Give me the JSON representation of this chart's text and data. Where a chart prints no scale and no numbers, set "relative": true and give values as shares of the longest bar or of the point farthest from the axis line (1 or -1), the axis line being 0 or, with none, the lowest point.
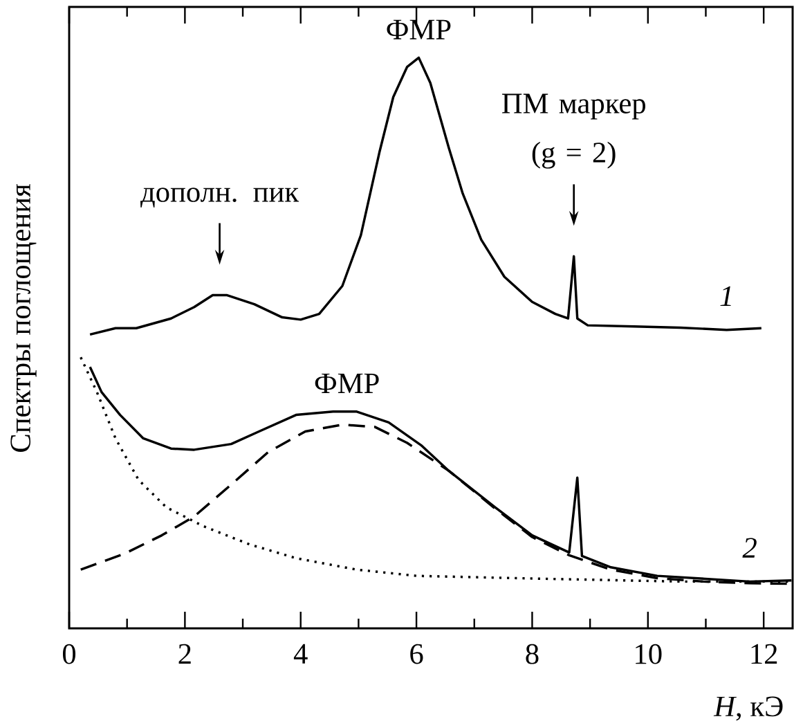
{
  "chart_data": {
    "type": "line",
    "relative": true,
    "xlabel": "*H*, кЭ",
    "ylabel": "Спектры поглощения",
    "xlim": [
      0,
      12.5
    ],
    "xticks": [
      0,
      2,
      4,
      6,
      8,
      10,
      12
    ],
    "grid": false,
    "legend": false,
    "marker": "none",
    "series": [
      {
        "name": "1",
        "color": "#000000",
        "line_style": "solid",
        "x": [
          0.36,
          0.8,
          1.16,
          1.76,
          2.16,
          2.48,
          2.72,
          3.2,
          3.68,
          4.0,
          4.32,
          4.72,
          5.04,
          5.36,
          5.6,
          5.84,
          6.04,
          6.24,
          6.56,
          6.8,
          7.12,
          7.52,
          8.0,
          8.4,
          8.62,
          8.72,
          8.78,
          8.96,
          9.76,
          10.56,
          11.36,
          11.96
        ],
        "values": [
          0.515,
          0.526,
          0.526,
          0.543,
          0.563,
          0.584,
          0.584,
          0.568,
          0.545,
          0.541,
          0.551,
          0.6,
          0.689,
          0.834,
          0.931,
          0.984,
          1.0,
          0.956,
          0.842,
          0.762,
          0.681,
          0.616,
          0.572,
          0.551,
          0.543,
          0.652,
          0.543,
          0.531,
          0.529,
          0.527,
          0.523,
          0.526
        ]
      },
      {
        "name": "2",
        "color": "#000000",
        "line_style": "solid",
        "x": [
          0.36,
          0.56,
          0.88,
          1.28,
          1.76,
          2.16,
          2.8,
          3.28,
          3.92,
          4.56,
          4.96,
          5.52,
          6.08,
          6.56,
          7.36,
          8.0,
          8.64,
          8.78,
          8.86,
          9.36,
          10.16,
          10.96,
          11.76,
          12.48
        ],
        "values": [
          0.458,
          0.414,
          0.374,
          0.333,
          0.315,
          0.313,
          0.323,
          0.345,
          0.374,
          0.38,
          0.38,
          0.361,
          0.321,
          0.276,
          0.212,
          0.163,
          0.133,
          0.264,
          0.127,
          0.107,
          0.092,
          0.087,
          0.082,
          0.084
        ]
      },
      {
        "color": "#000000",
        "line_style": "dashed",
        "x": [
          0.2,
          0.96,
          1.6,
          2.16,
          2.8,
          3.44,
          4.08,
          4.72,
          5.28,
          5.84,
          6.56,
          7.36,
          8.0,
          8.64,
          9.36,
          10.16,
          10.96,
          11.76,
          12.48
        ],
        "values": [
          0.103,
          0.131,
          0.163,
          0.196,
          0.252,
          0.309,
          0.345,
          0.357,
          0.353,
          0.325,
          0.276,
          0.21,
          0.16,
          0.128,
          0.103,
          0.088,
          0.082,
          0.079,
          0.078
        ]
      },
      {
        "color": "#000000",
        "line_style": "dotted",
        "x": [
          0.2,
          0.48,
          0.8,
          1.2,
          1.68,
          2.32,
          3.12,
          3.92,
          4.96,
          6.0,
          8.16,
          10.56,
          12.48
        ],
        "values": [
          0.475,
          0.414,
          0.333,
          0.26,
          0.212,
          0.179,
          0.147,
          0.123,
          0.103,
          0.092,
          0.087,
          0.082,
          0.082
        ]
      }
    ],
    "annotations": [
      {
        "text": "ФМР",
        "x": 6.04,
        "y": 1.0
      },
      {
        "text": "дополн. пик",
        "x": 2.6,
        "y": 0.584
      },
      {
        "text": "ПМ маркер (g = 2)",
        "x": 8.72,
        "y": 0.652
      },
      {
        "text": "ФМР",
        "x": 4.8,
        "y": 0.38
      }
    ]
  }
}
